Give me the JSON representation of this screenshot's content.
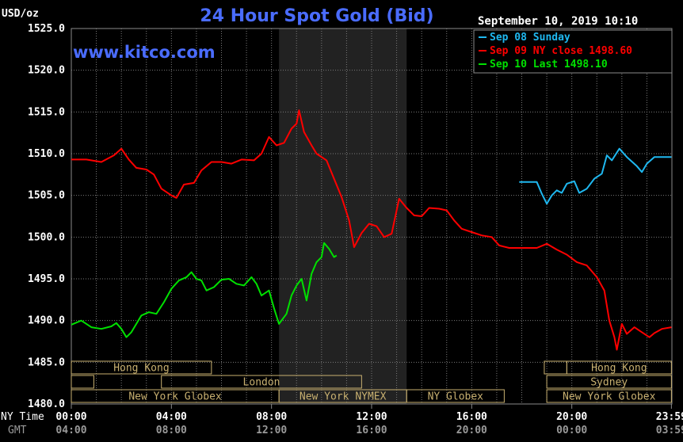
{
  "chart_data": {
    "type": "line",
    "title": "24 Hour Spot Gold (Bid)",
    "ylabel": "USD/oz",
    "watermark": "www.kitco.com",
    "timestamp": "September 10, 2019 10:10",
    "ylim": [
      1480,
      1525
    ],
    "yticks": [
      "1525.0",
      "1520.0",
      "1515.0",
      "1510.0",
      "1505.0",
      "1500.0",
      "1495.0",
      "1490.0",
      "1485.0",
      "1480.0"
    ],
    "xlim": [
      0,
      24
    ],
    "x_row_labels": [
      "NY Time",
      "GMT"
    ],
    "xticks_ny": [
      "00:00",
      "04:00",
      "08:00",
      "12:00",
      "16:00",
      "20:00",
      "23:59"
    ],
    "xticks_gmt": [
      "04:00",
      "08:00",
      "12:00",
      "16:00",
      "20:00",
      "00:00",
      "03:59"
    ],
    "grid": true,
    "legend_position": "top-right",
    "shaded_region_hours": [
      8.3,
      13.4
    ],
    "colors": {
      "background": "#000000",
      "grid": "#7a7a7a",
      "title": "#4a6cff",
      "sep08": "#1fb8f0",
      "sep09": "#ff0000",
      "sep10": "#00e000",
      "band": "#c8b070"
    },
    "series": [
      {
        "name": "Sep 08 Sunday",
        "legend_label": "Sep 08 Sunday",
        "color": "#1fb8f0",
        "points": [
          [
            17.9,
            1506.6
          ],
          [
            18.3,
            1506.6
          ],
          [
            18.6,
            1506.6
          ],
          [
            18.8,
            1505.2
          ],
          [
            19.0,
            1504.0
          ],
          [
            19.2,
            1505.0
          ],
          [
            19.4,
            1505.6
          ],
          [
            19.6,
            1505.3
          ],
          [
            19.8,
            1506.4
          ],
          [
            20.1,
            1506.7
          ],
          [
            20.3,
            1505.3
          ],
          [
            20.6,
            1505.8
          ],
          [
            20.9,
            1507.0
          ],
          [
            21.2,
            1507.6
          ],
          [
            21.4,
            1509.8
          ],
          [
            21.6,
            1509.2
          ],
          [
            21.9,
            1510.6
          ],
          [
            22.2,
            1509.6
          ],
          [
            22.6,
            1508.5
          ],
          [
            22.8,
            1507.8
          ],
          [
            23.0,
            1508.8
          ],
          [
            23.3,
            1509.6
          ],
          [
            23.6,
            1509.6
          ],
          [
            23.98,
            1509.6
          ]
        ]
      },
      {
        "name": "Sep 09 NY close",
        "legend_label": "Sep 09 NY close 1498.60",
        "color": "#ff0000",
        "points": [
          [
            0.0,
            1509.3
          ],
          [
            0.6,
            1509.3
          ],
          [
            1.2,
            1509.0
          ],
          [
            1.7,
            1509.8
          ],
          [
            2.0,
            1510.6
          ],
          [
            2.3,
            1509.3
          ],
          [
            2.6,
            1508.3
          ],
          [
            3.0,
            1508.1
          ],
          [
            3.3,
            1507.5
          ],
          [
            3.6,
            1505.8
          ],
          [
            4.0,
            1505.0
          ],
          [
            4.2,
            1504.7
          ],
          [
            4.5,
            1506.3
          ],
          [
            4.9,
            1506.5
          ],
          [
            5.2,
            1508.0
          ],
          [
            5.6,
            1509.0
          ],
          [
            6.0,
            1509.0
          ],
          [
            6.4,
            1508.8
          ],
          [
            6.8,
            1509.3
          ],
          [
            7.3,
            1509.2
          ],
          [
            7.6,
            1510.0
          ],
          [
            7.9,
            1512.0
          ],
          [
            8.2,
            1511.0
          ],
          [
            8.5,
            1511.3
          ],
          [
            8.8,
            1513.0
          ],
          [
            9.0,
            1513.6
          ],
          [
            9.1,
            1515.2
          ],
          [
            9.3,
            1512.6
          ],
          [
            9.6,
            1511.0
          ],
          [
            9.8,
            1510.0
          ],
          [
            10.2,
            1509.2
          ],
          [
            10.5,
            1507.0
          ],
          [
            10.8,
            1504.8
          ],
          [
            11.1,
            1502.0
          ],
          [
            11.3,
            1498.8
          ],
          [
            11.6,
            1500.5
          ],
          [
            11.9,
            1501.6
          ],
          [
            12.2,
            1501.3
          ],
          [
            12.5,
            1500.0
          ],
          [
            12.8,
            1500.4
          ],
          [
            13.1,
            1504.6
          ],
          [
            13.4,
            1503.5
          ],
          [
            13.7,
            1502.6
          ],
          [
            14.0,
            1502.5
          ],
          [
            14.3,
            1503.5
          ],
          [
            14.7,
            1503.4
          ],
          [
            15.0,
            1503.2
          ],
          [
            15.3,
            1502.0
          ],
          [
            15.6,
            1501.0
          ],
          [
            16.0,
            1500.6
          ],
          [
            16.4,
            1500.2
          ],
          [
            16.8,
            1500.0
          ],
          [
            17.1,
            1499.0
          ],
          [
            17.5,
            1498.7
          ],
          [
            18.0,
            1498.7
          ],
          [
            18.6,
            1498.7
          ],
          [
            19.0,
            1499.2
          ],
          [
            19.4,
            1498.5
          ],
          [
            19.8,
            1497.9
          ],
          [
            20.2,
            1497.0
          ],
          [
            20.6,
            1496.6
          ],
          [
            21.0,
            1495.2
          ],
          [
            21.3,
            1493.6
          ],
          [
            21.5,
            1490.0
          ],
          [
            21.7,
            1488.0
          ],
          [
            21.8,
            1486.5
          ],
          [
            22.0,
            1489.6
          ],
          [
            22.2,
            1488.4
          ],
          [
            22.5,
            1489.2
          ],
          [
            22.8,
            1488.6
          ],
          [
            23.1,
            1488.0
          ],
          [
            23.3,
            1488.5
          ],
          [
            23.6,
            1489.0
          ],
          [
            23.98,
            1489.2
          ]
        ]
      },
      {
        "name": "Sep 10 Last",
        "legend_label": "Sep 10 Last 1498.10",
        "color": "#00e000",
        "points": [
          [
            0.0,
            1489.5
          ],
          [
            0.4,
            1490.0
          ],
          [
            0.8,
            1489.2
          ],
          [
            1.2,
            1489.0
          ],
          [
            1.6,
            1489.3
          ],
          [
            1.8,
            1489.7
          ],
          [
            2.0,
            1489.0
          ],
          [
            2.2,
            1488.0
          ],
          [
            2.4,
            1488.6
          ],
          [
            2.8,
            1490.6
          ],
          [
            3.1,
            1491.0
          ],
          [
            3.4,
            1490.8
          ],
          [
            3.7,
            1492.2
          ],
          [
            4.0,
            1493.8
          ],
          [
            4.3,
            1494.8
          ],
          [
            4.6,
            1495.2
          ],
          [
            4.8,
            1495.8
          ],
          [
            5.0,
            1495.0
          ],
          [
            5.2,
            1494.8
          ],
          [
            5.4,
            1493.6
          ],
          [
            5.7,
            1494.0
          ],
          [
            6.0,
            1494.9
          ],
          [
            6.3,
            1495.0
          ],
          [
            6.6,
            1494.4
          ],
          [
            6.9,
            1494.2
          ],
          [
            7.2,
            1495.2
          ],
          [
            7.4,
            1494.4
          ],
          [
            7.6,
            1493.0
          ],
          [
            7.9,
            1493.6
          ],
          [
            8.1,
            1491.5
          ],
          [
            8.3,
            1489.6
          ],
          [
            8.6,
            1490.8
          ],
          [
            8.8,
            1493.0
          ],
          [
            9.0,
            1494.2
          ],
          [
            9.2,
            1495.0
          ],
          [
            9.4,
            1492.4
          ],
          [
            9.6,
            1495.6
          ],
          [
            9.8,
            1497.0
          ],
          [
            10.0,
            1497.6
          ],
          [
            10.1,
            1499.3
          ],
          [
            10.3,
            1498.6
          ],
          [
            10.5,
            1497.6
          ],
          [
            10.6,
            1497.8
          ]
        ]
      }
    ],
    "sessions": [
      {
        "label": "Hong Kong",
        "start": 0.0,
        "end": 5.6,
        "row": 0
      },
      {
        "label": "London",
        "start": 3.6,
        "end": 11.6,
        "row": 1
      },
      {
        "label": "New York Globex",
        "start": 0.0,
        "end": 8.3,
        "row": 2
      },
      {
        "label": "New York NYMEX",
        "start": 8.3,
        "end": 13.4,
        "row": 2
      },
      {
        "label": "NY Globex",
        "start": 13.4,
        "end": 17.3,
        "row": 2
      },
      {
        "label": "Hong Kong",
        "start": 19.8,
        "end": 23.98,
        "row": 0
      },
      {
        "label": "Sydney",
        "start": 19.0,
        "end": 23.98,
        "row": 1
      },
      {
        "label": "New York Globex",
        "start": 19.0,
        "end": 23.98,
        "row": 2
      }
    ],
    "sessions_blank": [
      {
        "start": 0.0,
        "end": 0.9,
        "row": 1
      },
      {
        "start": 18.9,
        "end": 19.8,
        "row": 0
      }
    ]
  }
}
